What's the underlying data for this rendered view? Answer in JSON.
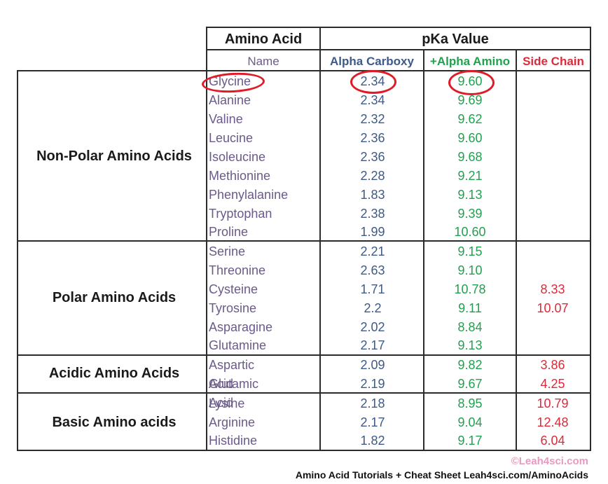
{
  "header": {
    "amino_acid": "Amino Acid",
    "pka_value": "pKa Value",
    "name": "Name",
    "alpha_carboxy": "Alpha Carboxy",
    "alpha_amino": "+Alpha Amino",
    "side_chain": "Side Chain"
  },
  "groups": [
    {
      "label": "Non-Polar Amino Acids",
      "rows": [
        {
          "name": "Glycine",
          "carboxy": "2.34",
          "amino": "9.60",
          "side": ""
        },
        {
          "name": "Alanine",
          "carboxy": "2.34",
          "amino": "9.69",
          "side": ""
        },
        {
          "name": "Valine",
          "carboxy": "2.32",
          "amino": "9.62",
          "side": ""
        },
        {
          "name": "Leucine",
          "carboxy": "2.36",
          "amino": "9.60",
          "side": ""
        },
        {
          "name": "Isoleucine",
          "carboxy": "2.36",
          "amino": "9.68",
          "side": ""
        },
        {
          "name": "Methionine",
          "carboxy": "2.28",
          "amino": "9.21",
          "side": ""
        },
        {
          "name": "Phenylalanine",
          "carboxy": "1.83",
          "amino": "9.13",
          "side": ""
        },
        {
          "name": "Tryptophan",
          "carboxy": "2.38",
          "amino": "9.39",
          "side": ""
        },
        {
          "name": "Proline",
          "carboxy": "1.99",
          "amino": "10.60",
          "side": ""
        }
      ]
    },
    {
      "label": "Polar Amino Acids",
      "rows": [
        {
          "name": "Serine",
          "carboxy": "2.21",
          "amino": "9.15",
          "side": ""
        },
        {
          "name": "Threonine",
          "carboxy": "2.63",
          "amino": "9.10",
          "side": ""
        },
        {
          "name": "Cysteine",
          "carboxy": "1.71",
          "amino": "10.78",
          "side": "8.33"
        },
        {
          "name": "Tyrosine",
          "carboxy": "2.2",
          "amino": "9.11",
          "side": "10.07"
        },
        {
          "name": "Asparagine",
          "carboxy": "2.02",
          "amino": "8.84",
          "side": ""
        },
        {
          "name": "Glutamine",
          "carboxy": "2.17",
          "amino": "9.13",
          "side": ""
        }
      ]
    },
    {
      "label": "Acidic Amino Acids",
      "rows": [
        {
          "name": "Aspartic Acid",
          "carboxy": "2.09",
          "amino": "9.82",
          "side": "3.86"
        },
        {
          "name": "Glutamic Acid",
          "carboxy": "2.19",
          "amino": "9.67",
          "side": "4.25"
        }
      ]
    },
    {
      "label": "Basic Amino acids",
      "rows": [
        {
          "name": "Lysine",
          "carboxy": "2.18",
          "amino": "8.95",
          "side": "10.79"
        },
        {
          "name": "Arginine",
          "carboxy": "2.17",
          "amino": "9.04",
          "side": "12.48"
        },
        {
          "name": "Histidine",
          "carboxy": "1.82",
          "amino": "9.17",
          "side": "6.04"
        }
      ]
    }
  ],
  "footer": {
    "copyright": "©Leah4sci.com",
    "credit": "Amino Acid Tutorials + Cheat Sheet Leah4sci.com/AminoAcids"
  },
  "colors": {
    "name": "#6b5a8a",
    "alpha_carboxy": "#3d5a88",
    "alpha_amino": "#23a04f",
    "side_chain": "#dd2a3a",
    "annotation_circle": "#e01a26",
    "copyright": "#e79ac0"
  }
}
